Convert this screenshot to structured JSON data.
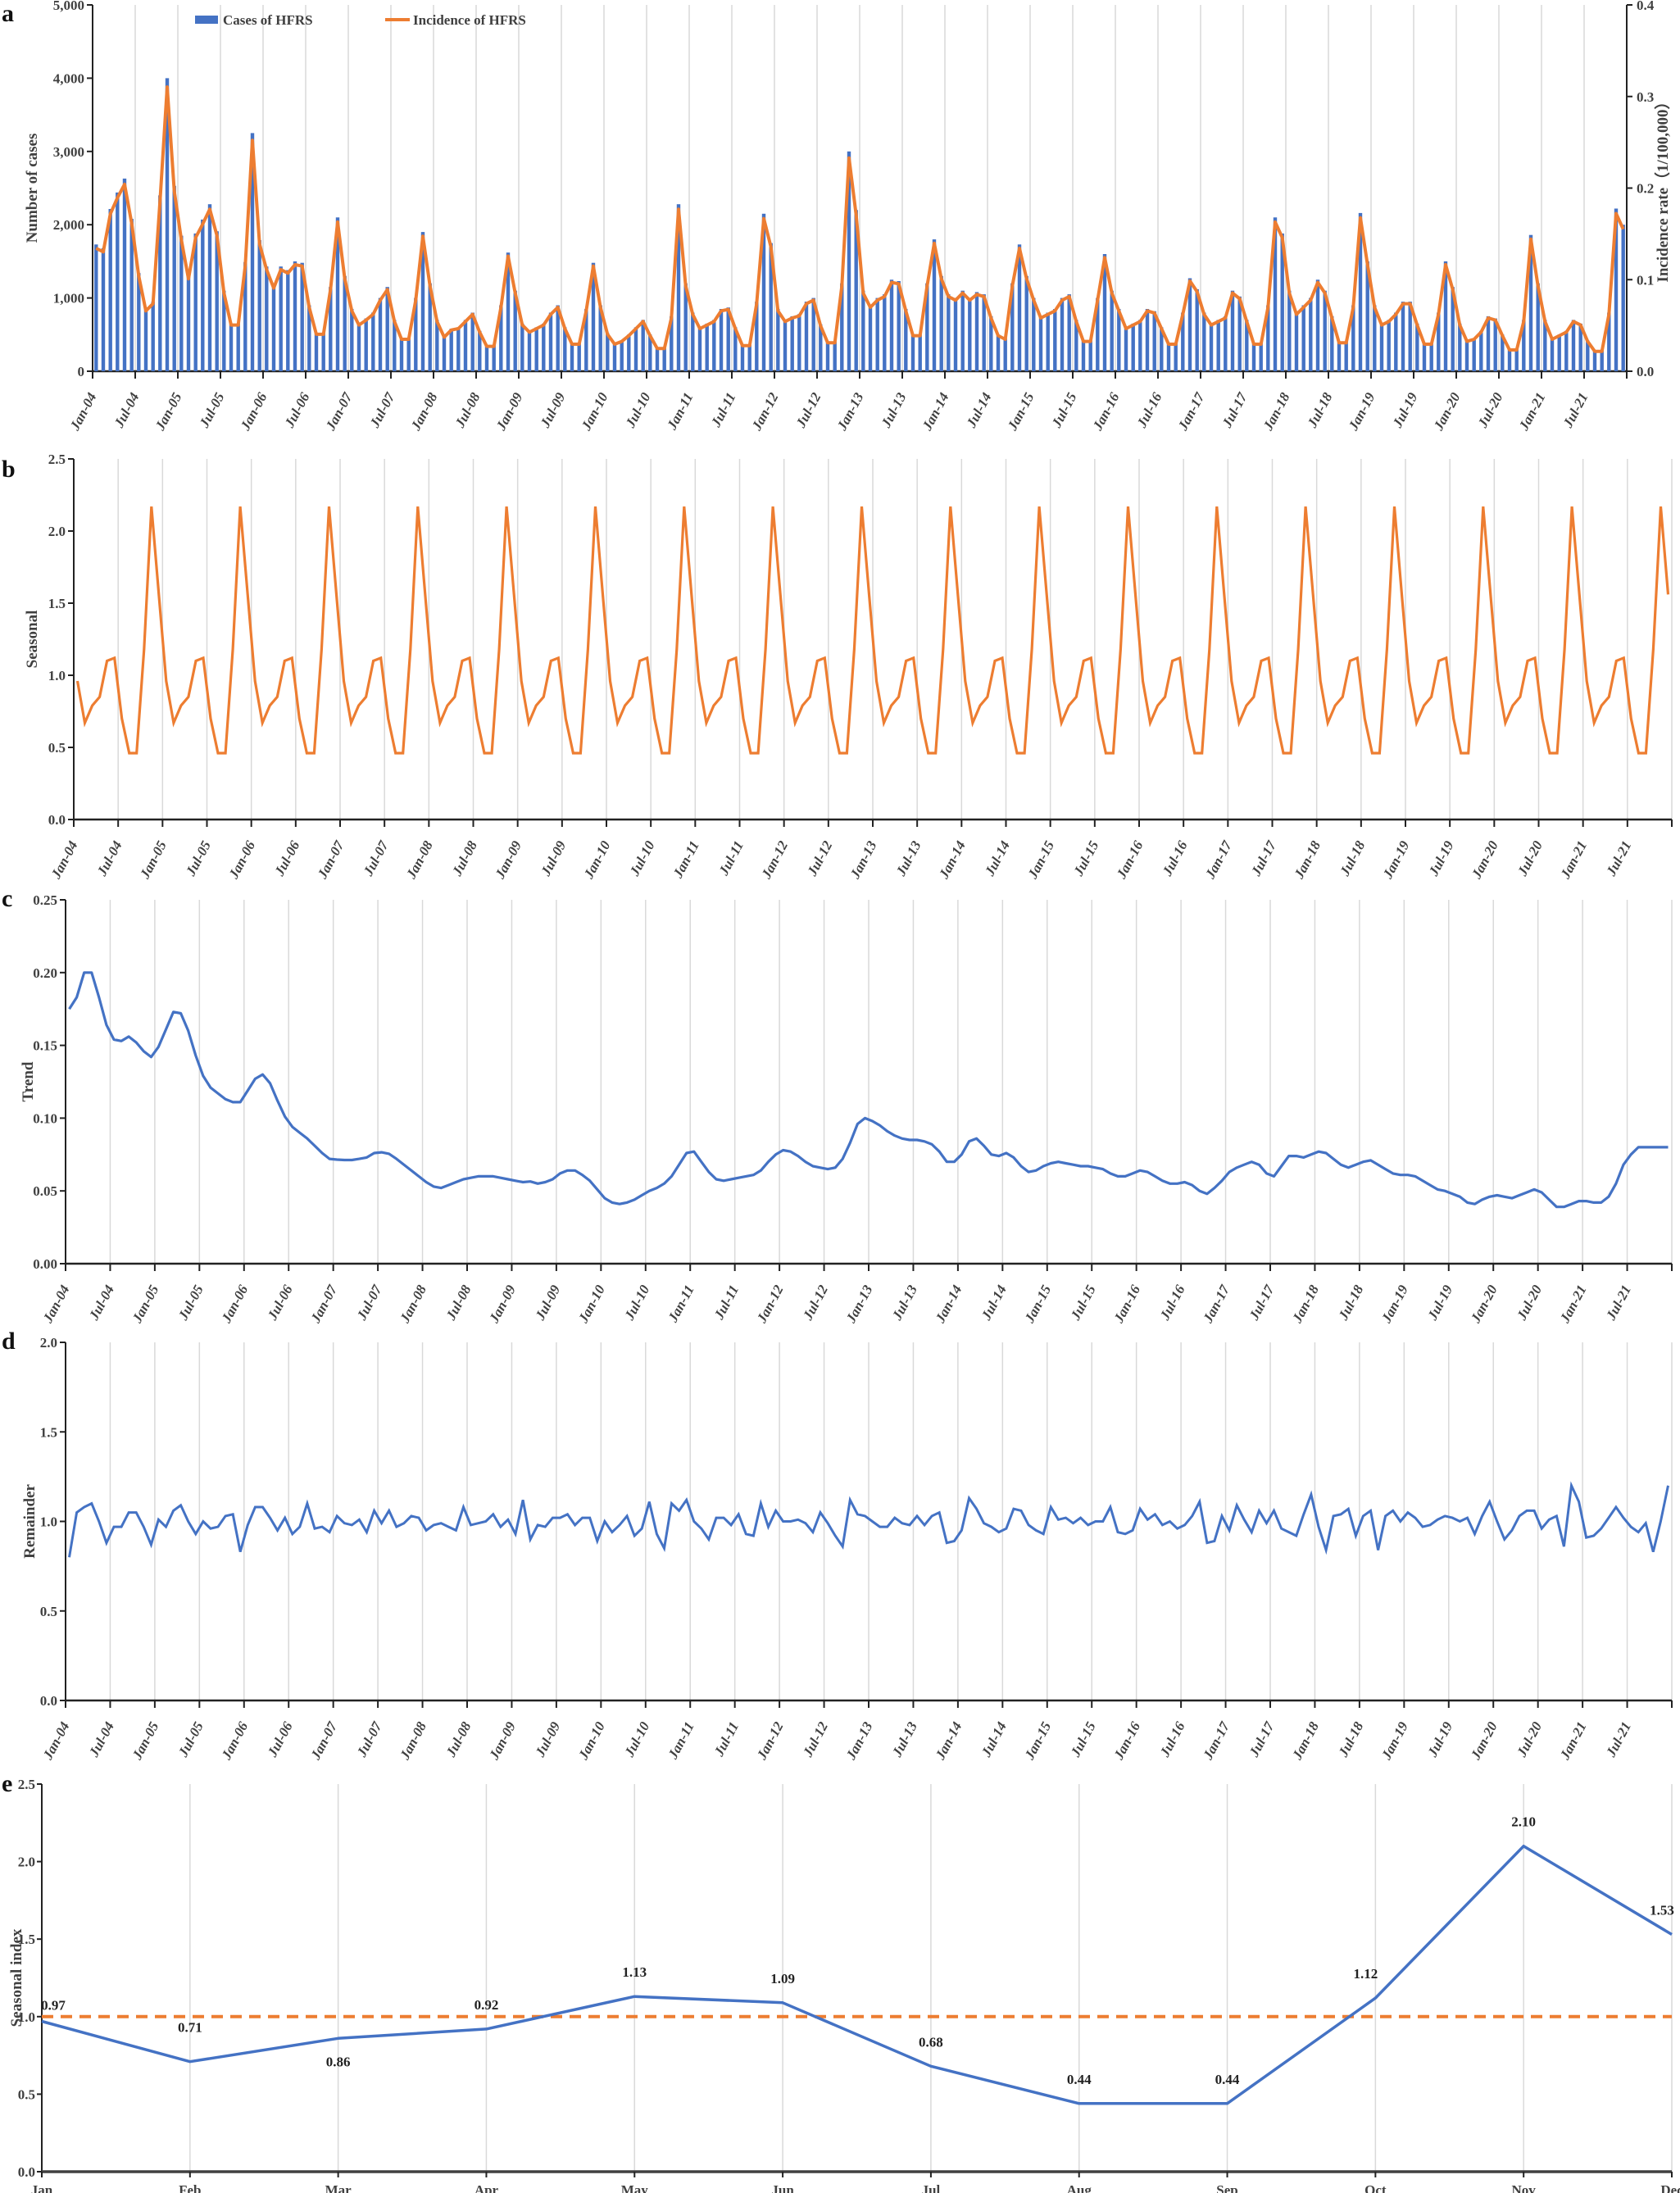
{
  "figure": {
    "panels": [
      "a",
      "b",
      "c",
      "d",
      "e"
    ]
  },
  "colors": {
    "blue": "#4472C4",
    "orange": "#ED7D31",
    "grid": "#D9D9D9",
    "axis": "#222222"
  },
  "chart_data": [
    {
      "panel": "a",
      "type": "bar+line",
      "title": "",
      "xlabel": "",
      "ylabel": "Number of cases",
      "y2label": "Incidence rate（1/100,000）",
      "ylim": [
        0,
        5000
      ],
      "yticks": [
        "0",
        "1,000",
        "2,000",
        "3,000",
        "4,000",
        "5,000"
      ],
      "y2lim": [
        0,
        0.4
      ],
      "y2ticks": [
        "0.0",
        "0.1",
        "0.2",
        "0.3",
        "0.4"
      ],
      "grid": "vertical",
      "legend": {
        "position": "top",
        "entries": [
          "Cases of HFRS",
          "Incidence of HFRS"
        ]
      },
      "x_start": "Jan-04",
      "x_end": "Dec-21",
      "xtick_labels": [
        "Jan-04",
        "Jul-04",
        "Jan-05",
        "Jul-05",
        "Jan-06",
        "Jul-06",
        "Jan-07",
        "Jul-07",
        "Jan-08",
        "Jul-08",
        "Jan-09",
        "Jul-09",
        "Jan-10",
        "Jul-10",
        "Jan-11",
        "Jul-11",
        "Jan-12",
        "Jul-12",
        "Jan-13",
        "Jul-13",
        "Jan-14",
        "Jul-14",
        "Jan-15",
        "Jul-15",
        "Jan-16",
        "Jul-16",
        "Jan-17",
        "Jul-17",
        "Jan-18",
        "Jul-18",
        "Jan-19",
        "Jul-19",
        "Jan-20",
        "Jul-20",
        "Jan-21",
        "Jul-21"
      ],
      "series": [
        {
          "name": "Cases of HFRS",
          "type": "bar",
          "axis": "left",
          "values": [
            1730,
            1680,
            2215,
            2440,
            2630,
            2080,
            1340,
            850,
            950,
            2400,
            4000,
            2530,
            1850,
            1300,
            1880,
            2070,
            2280,
            1910,
            1100,
            650,
            650,
            1490,
            3250,
            1790,
            1430,
            1170,
            1430,
            1380,
            1500,
            1480,
            900,
            520,
            520,
            1150,
            2100,
            1300,
            850,
            650,
            720,
            800,
            1000,
            1150,
            700,
            450,
            450,
            1000,
            1900,
            1200,
            700,
            480,
            580,
            600,
            700,
            800,
            550,
            350,
            350,
            900,
            1620,
            1100,
            650,
            550,
            600,
            650,
            800,
            900,
            600,
            380,
            380,
            850,
            1480,
            900,
            520,
            380,
            420,
            500,
            600,
            700,
            500,
            320,
            320,
            750,
            2280,
            1200,
            800,
            600,
            650,
            700,
            850,
            870,
            600,
            360,
            360,
            950,
            2150,
            1750,
            850,
            700,
            750,
            780,
            950,
            1000,
            640,
            400,
            400,
            1200,
            3000,
            2200,
            1100,
            900,
            1000,
            1050,
            1250,
            1230,
            850,
            500,
            500,
            1200,
            1800,
            1300,
            1050,
            1000,
            1100,
            1000,
            1080,
            1050,
            750,
            500,
            450,
            1200,
            1730,
            1300,
            1000,
            750,
            800,
            850,
            1000,
            1050,
            700,
            420,
            420,
            1000,
            1600,
            1100,
            850,
            600,
            650,
            700,
            850,
            820,
            600,
            380,
            380,
            800,
            1270,
            1120,
            800,
            650,
            700,
            750,
            1100,
            1020,
            700,
            380,
            380,
            900,
            2100,
            1880,
            1100,
            800,
            900,
            1000,
            1250,
            1100,
            750,
            400,
            400,
            900,
            2160,
            1500,
            900,
            650,
            700,
            800,
            950,
            950,
            650,
            380,
            380,
            800,
            1500,
            1150,
            650,
            420,
            450,
            550,
            750,
            720,
            500,
            300,
            300,
            700,
            1860,
            1200,
            700,
            450,
            500,
            550,
            700,
            650,
            420,
            280,
            280,
            800,
            2220,
            2000
          ]
        },
        {
          "name": "Incidence of HFRS",
          "type": "line",
          "axis": "right",
          "values_note": "approximately proportional to cases (≈ cases × 0.0000776)",
          "scale_from_cases": 7.76e-05
        }
      ]
    },
    {
      "panel": "b",
      "type": "line",
      "ylabel": "Seasonal",
      "ylim": [
        0,
        2.5
      ],
      "yticks": [
        "0.0",
        "0.5",
        "1.0",
        "1.5",
        "2.0",
        "2.5"
      ],
      "grid": "vertical",
      "x_start": "Jan-04",
      "x_end": "Dec-21",
      "monthly_pattern": [
        0.96,
        0.67,
        0.79,
        0.85,
        1.1,
        1.12,
        0.7,
        0.46,
        0.46,
        1.18,
        2.17,
        1.56
      ],
      "repeats_years": 18,
      "series_color": "orange"
    },
    {
      "panel": "c",
      "type": "line",
      "ylabel": "Trend",
      "ylim": [
        0,
        0.25
      ],
      "yticks": [
        "0.00",
        "0.05",
        "0.10",
        "0.15",
        "0.20",
        "0.25"
      ],
      "grid": "vertical",
      "x_start": "Jan-04",
      "x_end": "Dec-21",
      "series_color": "blue",
      "values": [
        0.175,
        0.183,
        0.2,
        0.2,
        0.183,
        0.164,
        0.154,
        0.153,
        0.156,
        0.152,
        0.146,
        0.142,
        0.149,
        0.161,
        0.173,
        0.172,
        0.16,
        0.143,
        0.129,
        0.121,
        0.117,
        0.113,
        0.111,
        0.111,
        0.119,
        0.127,
        0.13,
        0.124,
        0.112,
        0.101,
        0.094,
        0.09,
        0.086,
        0.081,
        0.076,
        0.072,
        0.0715,
        0.0712,
        0.0712,
        0.072,
        0.073,
        0.076,
        0.0765,
        0.0755,
        0.072,
        0.068,
        0.064,
        0.06,
        0.056,
        0.053,
        0.052,
        0.054,
        0.056,
        0.058,
        0.059,
        0.06,
        0.06,
        0.06,
        0.059,
        0.058,
        0.057,
        0.056,
        0.0565,
        0.055,
        0.056,
        0.058,
        0.062,
        0.064,
        0.064,
        0.061,
        0.057,
        0.051,
        0.045,
        0.042,
        0.041,
        0.042,
        0.044,
        0.047,
        0.05,
        0.052,
        0.055,
        0.06,
        0.068,
        0.076,
        0.077,
        0.07,
        0.063,
        0.058,
        0.057,
        0.058,
        0.059,
        0.06,
        0.061,
        0.064,
        0.07,
        0.075,
        0.078,
        0.077,
        0.074,
        0.07,
        0.067,
        0.066,
        0.065,
        0.066,
        0.072,
        0.083,
        0.096,
        0.1,
        0.098,
        0.095,
        0.091,
        0.088,
        0.086,
        0.085,
        0.085,
        0.084,
        0.082,
        0.077,
        0.07,
        0.07,
        0.075,
        0.084,
        0.086,
        0.081,
        0.075,
        0.074,
        0.076,
        0.073,
        0.067,
        0.063,
        0.064,
        0.067,
        0.069,
        0.07,
        0.069,
        0.068,
        0.067,
        0.067,
        0.066,
        0.065,
        0.062,
        0.06,
        0.06,
        0.062,
        0.064,
        0.063,
        0.06,
        0.057,
        0.055,
        0.055,
        0.056,
        0.054,
        0.05,
        0.048,
        0.052,
        0.057,
        0.063,
        0.066,
        0.068,
        0.07,
        0.068,
        0.062,
        0.06,
        0.067,
        0.074,
        0.074,
        0.073,
        0.075,
        0.077,
        0.076,
        0.072,
        0.068,
        0.066,
        0.068,
        0.07,
        0.071,
        0.068,
        0.065,
        0.062,
        0.061,
        0.061,
        0.06,
        0.057,
        0.054,
        0.051,
        0.05,
        0.048,
        0.046,
        0.042,
        0.041,
        0.044,
        0.046,
        0.047,
        0.046,
        0.045,
        0.047,
        0.049,
        0.051,
        0.049,
        0.044,
        0.039,
        0.039,
        0.041,
        0.043,
        0.043,
        0.042,
        0.042,
        0.046,
        0.055,
        0.068,
        0.075,
        0.08,
        0.08,
        0.08,
        0.08,
        0.08
      ]
    },
    {
      "panel": "d",
      "type": "line",
      "ylabel": "Remainder",
      "ylim": [
        0,
        2.0
      ],
      "yticks": [
        "0.0",
        "0.5",
        "1.0",
        "1.5",
        "2.0"
      ],
      "grid": "vertical",
      "x_start": "Jan-04",
      "x_end": "Dec-21",
      "series_color": "blue",
      "values": [
        0.8,
        1.05,
        1.08,
        1.1,
        1.0,
        0.88,
        0.97,
        0.97,
        1.05,
        1.05,
        0.97,
        0.87,
        1.01,
        0.97,
        1.06,
        1.09,
        1.0,
        0.93,
        1.0,
        0.96,
        0.97,
        1.03,
        1.04,
        0.83,
        0.98,
        1.08,
        1.08,
        1.02,
        0.95,
        1.02,
        0.93,
        0.97,
        1.1,
        0.96,
        0.97,
        0.94,
        1.03,
        0.99,
        0.98,
        1.01,
        0.94,
        1.06,
        0.99,
        1.06,
        0.97,
        0.99,
        1.03,
        1.02,
        0.95,
        0.98,
        0.99,
        0.97,
        0.95,
        1.08,
        0.98,
        0.99,
        1.0,
        1.04,
        0.97,
        1.01,
        0.93,
        1.12,
        0.9,
        0.98,
        0.97,
        1.02,
        1.02,
        1.04,
        0.98,
        1.02,
        1.02,
        0.89,
        1.0,
        0.94,
        0.98,
        1.03,
        0.92,
        0.96,
        1.11,
        0.93,
        0.85,
        1.1,
        1.06,
        1.12,
        1.0,
        0.96,
        0.9,
        1.02,
        1.02,
        0.98,
        1.04,
        0.93,
        0.92,
        1.1,
        0.97,
        1.06,
        1.0,
        1.0,
        1.01,
        0.99,
        0.94,
        1.05,
        0.99,
        0.92,
        0.86,
        1.12,
        1.04,
        1.03,
        1.0,
        0.97,
        0.97,
        1.02,
        0.99,
        0.98,
        1.03,
        0.98,
        1.03,
        1.05,
        0.88,
        0.89,
        0.95,
        1.13,
        1.07,
        0.99,
        0.97,
        0.94,
        0.96,
        1.07,
        1.06,
        0.98,
        0.95,
        0.93,
        1.08,
        1.01,
        1.02,
        0.99,
        1.02,
        0.98,
        1.0,
        1.0,
        1.08,
        0.94,
        0.93,
        0.95,
        1.07,
        1.01,
        1.04,
        0.98,
        1.0,
        0.96,
        0.98,
        1.03,
        1.11,
        0.88,
        0.89,
        1.03,
        0.95,
        1.09,
        1.01,
        0.94,
        1.06,
        0.99,
        1.06,
        0.96,
        0.94,
        0.92,
        1.04,
        1.15,
        0.97,
        0.84,
        1.03,
        1.04,
        1.07,
        0.92,
        1.03,
        1.06,
        0.84,
        1.03,
        1.06,
        1.0,
        1.05,
        1.02,
        0.97,
        0.98,
        1.01,
        1.03,
        1.02,
        1.0,
        1.02,
        0.93,
        1.03,
        1.11,
        1.0,
        0.9,
        0.95,
        1.03,
        1.06,
        1.06,
        0.96,
        1.01,
        1.03,
        0.86,
        1.2,
        1.11,
        0.91,
        0.92,
        0.96,
        1.02,
        1.08,
        1.02,
        0.97,
        0.94,
        0.99,
        0.83,
        1.0,
        1.2
      ]
    },
    {
      "panel": "e",
      "type": "line",
      "ylabel": "Seasonal index",
      "ylim": [
        0,
        2.5
      ],
      "yticks": [
        "0.0",
        "0.5",
        "1.0",
        "1.5",
        "2.0",
        "2.5"
      ],
      "grid": "vertical",
      "categories": [
        "Jan",
        "Feb",
        "Mar",
        "Apr",
        "May",
        "Jun",
        "Jul",
        "Aug",
        "Sep",
        "Oct",
        "Nov",
        "Dec"
      ],
      "values": [
        0.97,
        0.71,
        0.86,
        0.92,
        1.13,
        1.09,
        0.68,
        0.44,
        0.44,
        1.12,
        2.1,
        1.53
      ],
      "data_labels": [
        "0.97",
        "0.71",
        "0.86",
        "0.92",
        "1.13",
        "1.09",
        "0.68",
        "0.44",
        "0.44",
        "1.12",
        "2.10",
        "1.53"
      ],
      "reference_line": {
        "y": 1.0,
        "style": "dashed",
        "color": "orange"
      },
      "series_color": "blue"
    }
  ]
}
